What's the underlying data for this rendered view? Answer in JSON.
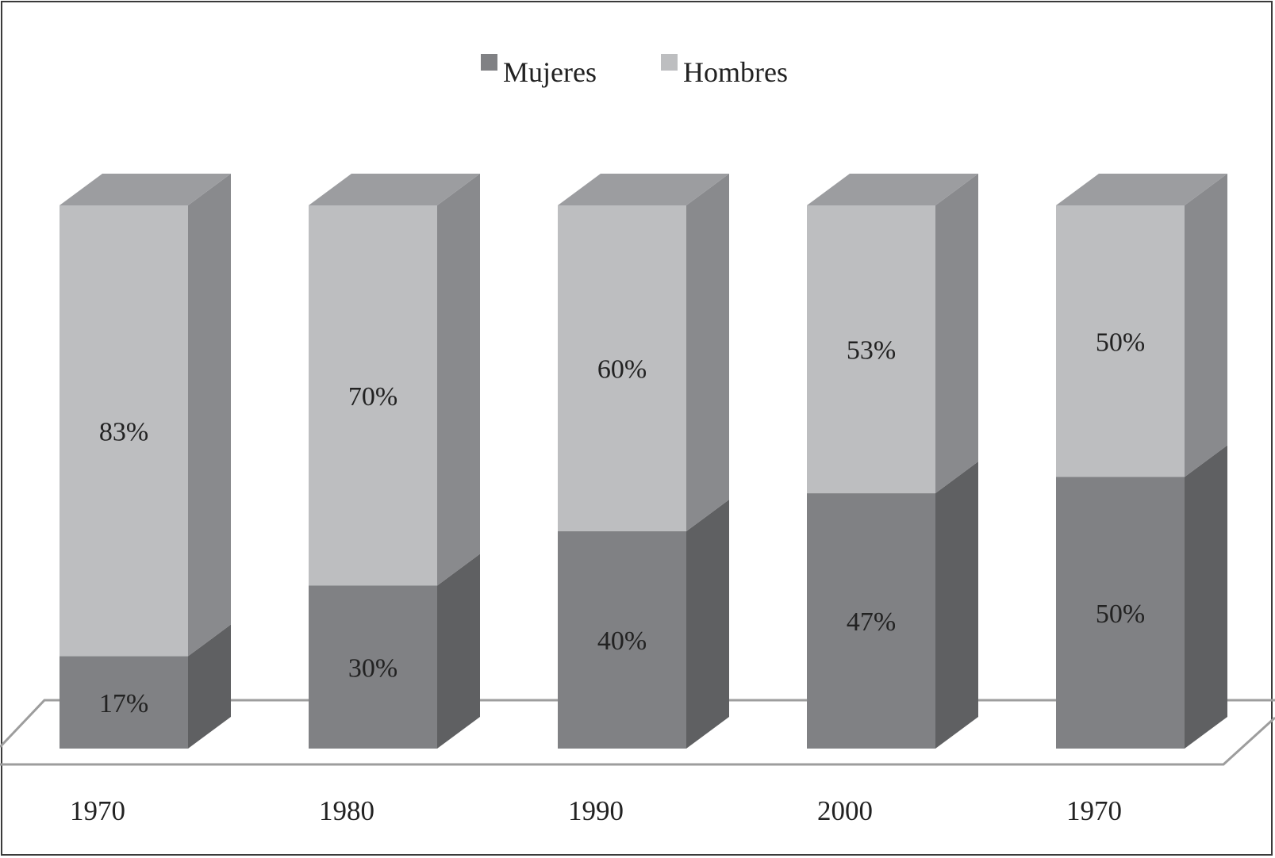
{
  "chart_data": {
    "type": "bar",
    "stacked": true,
    "three_d": true,
    "categories": [
      "1970",
      "1980",
      "1990",
      "2000",
      "1970"
    ],
    "series": [
      {
        "name": "Mujeres",
        "values": [
          17,
          30,
          40,
          47,
          50
        ],
        "labels": [
          "17%",
          "30%",
          "40%",
          "47%",
          "50%"
        ]
      },
      {
        "name": "Hombres",
        "values": [
          83,
          70,
          60,
          53,
          50
        ],
        "labels": [
          "83%",
          "70%",
          "60%",
          "53%",
          "50%"
        ]
      }
    ],
    "ylim": [
      0,
      100
    ],
    "legend_position": "top-center",
    "grid": false,
    "colors": {
      "Mujeres": {
        "front": "#808184",
        "side": "#5f6062",
        "top": "#9a9b9e"
      },
      "Hombres": {
        "front": "#bdbec0",
        "side": "#898a8d",
        "top": "#9c9da0"
      },
      "floor_stroke": "#9d9d9d"
    }
  }
}
